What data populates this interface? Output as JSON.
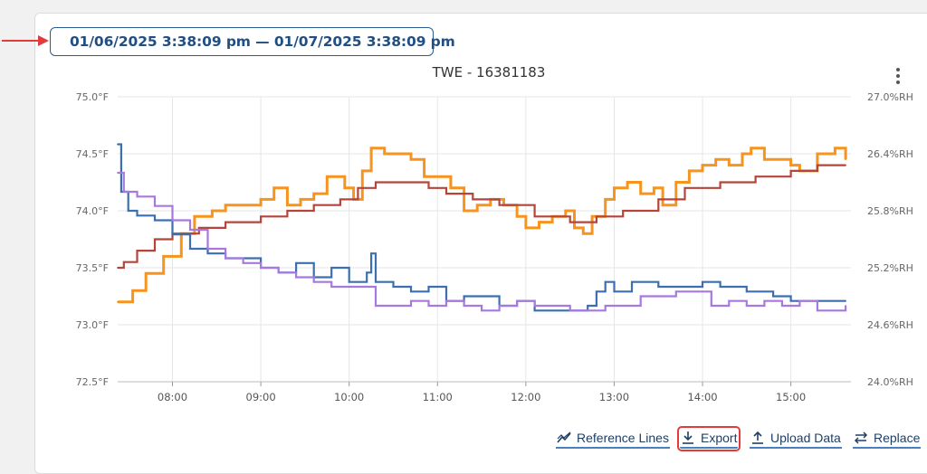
{
  "date_range": {
    "label": "01/06/2025 3:38:09 pm — 01/07/2025 3:38:09 pm"
  },
  "toolbar": {
    "reference_lines": "Reference Lines",
    "export": "Export",
    "upload_data": "Upload Data",
    "replace": "Replace"
  },
  "colors": {
    "accent": "#1f4f85",
    "highlight": "#e23b3b"
  },
  "icons": [
    "calendar-icon",
    "kebab-menu-icon",
    "reference-lines-icon",
    "download-icon",
    "upload-icon",
    "swap-icon"
  ],
  "chart_data": {
    "type": "line",
    "title": "TWE - 16381183",
    "x_ticks": [
      "08:00",
      "09:00",
      "10:00",
      "11:00",
      "12:00",
      "13:00",
      "14:00",
      "15:00"
    ],
    "xlim": [
      7.38,
      15.68
    ],
    "y_left": {
      "ticks": [
        "75.0°F",
        "74.5°F",
        "74.0°F",
        "73.5°F",
        "73.0°F",
        "72.5°F"
      ],
      "lim": [
        72.5,
        75.0
      ],
      "unit": "°F"
    },
    "y_right": {
      "ticks": [
        "27.0%RH",
        "26.4%RH",
        "25.8%RH",
        "25.2%RH",
        "24.6%RH",
        "24.0%RH"
      ],
      "lim": [
        24.0,
        27.0
      ],
      "unit": "%RH"
    },
    "grid": true,
    "series": [
      {
        "color": "#f7941d",
        "axis": "left",
        "x": [
          7.38,
          7.55,
          7.7,
          7.9,
          8.1,
          8.25,
          8.45,
          8.6,
          8.8,
          9.0,
          9.05,
          9.15,
          9.3,
          9.45,
          9.6,
          9.75,
          9.95,
          10.05,
          10.15,
          10.25,
          10.4,
          10.55,
          10.7,
          10.85,
          11.0,
          11.15,
          11.3,
          11.45,
          11.6,
          11.75,
          11.9,
          12.0,
          12.15,
          12.3,
          12.45,
          12.55,
          12.65,
          12.75,
          12.9,
          13.0,
          13.15,
          13.3,
          13.45,
          13.55,
          13.7,
          13.85,
          14.0,
          14.15,
          14.3,
          14.45,
          14.55,
          14.7,
          14.85,
          15.0,
          15.1,
          15.3,
          15.5,
          15.62
        ],
        "y": [
          73.2,
          73.3,
          73.45,
          73.6,
          73.8,
          73.95,
          74.0,
          74.05,
          74.05,
          74.1,
          74.1,
          74.2,
          74.05,
          74.1,
          74.15,
          74.3,
          74.2,
          74.1,
          74.35,
          74.55,
          74.5,
          74.5,
          74.45,
          74.3,
          74.3,
          74.2,
          74.0,
          74.05,
          74.1,
          74.05,
          73.95,
          73.85,
          73.9,
          73.95,
          74.0,
          73.85,
          73.8,
          73.95,
          74.1,
          74.2,
          74.25,
          74.15,
          74.2,
          74.05,
          74.25,
          74.35,
          74.4,
          74.45,
          74.4,
          74.5,
          74.55,
          74.45,
          74.45,
          74.4,
          74.35,
          74.5,
          74.55,
          74.45
        ]
      },
      {
        "color": "#b5443a",
        "axis": "left",
        "x": [
          7.38,
          7.45,
          7.6,
          7.8,
          8.0,
          8.3,
          8.6,
          9.0,
          9.3,
          9.6,
          9.9,
          10.1,
          10.3,
          10.7,
          10.9,
          11.1,
          11.4,
          11.7,
          12.1,
          12.5,
          12.8,
          13.1,
          13.5,
          13.8,
          14.2,
          14.6,
          15.0,
          15.3,
          15.62
        ],
        "y": [
          73.5,
          73.55,
          73.65,
          73.75,
          73.8,
          73.85,
          73.9,
          73.95,
          74.0,
          74.05,
          74.1,
          74.2,
          74.25,
          74.25,
          74.2,
          74.15,
          74.1,
          74.05,
          73.95,
          73.9,
          73.95,
          74.0,
          74.1,
          74.2,
          74.25,
          74.3,
          74.35,
          74.4,
          74.4
        ]
      },
      {
        "color": "#3b6fb0",
        "axis": "right",
        "x": [
          7.38,
          7.42,
          7.5,
          7.6,
          7.8,
          8.0,
          8.2,
          8.4,
          8.6,
          8.8,
          9.0,
          9.2,
          9.4,
          9.6,
          9.8,
          10.0,
          10.2,
          10.25,
          10.3,
          10.5,
          10.7,
          10.9,
          11.1,
          11.3,
          11.5,
          11.7,
          11.9,
          12.1,
          12.3,
          12.5,
          12.7,
          12.8,
          12.9,
          13.0,
          13.2,
          13.5,
          13.8,
          14.0,
          14.2,
          14.5,
          14.8,
          15.0,
          15.3,
          15.62
        ],
        "y": [
          26.5,
          26.0,
          25.8,
          25.75,
          25.7,
          25.55,
          25.4,
          25.35,
          25.3,
          25.3,
          25.2,
          25.15,
          25.25,
          25.1,
          25.2,
          25.05,
          25.15,
          25.35,
          25.05,
          25.0,
          24.95,
          25.0,
          24.85,
          24.9,
          24.9,
          24.8,
          24.85,
          24.75,
          24.75,
          24.75,
          24.8,
          24.95,
          25.05,
          24.95,
          25.05,
          25.0,
          25.0,
          25.05,
          25.0,
          24.95,
          24.9,
          24.85,
          24.85,
          24.85
        ]
      },
      {
        "color": "#a678e0",
        "axis": "right",
        "x": [
          7.38,
          7.45,
          7.6,
          7.8,
          8.0,
          8.2,
          8.4,
          8.6,
          8.8,
          9.0,
          9.2,
          9.4,
          9.6,
          9.8,
          10.0,
          10.2,
          10.3,
          10.5,
          10.7,
          10.9,
          11.1,
          11.3,
          11.5,
          11.7,
          11.9,
          12.1,
          12.3,
          12.5,
          12.7,
          12.9,
          13.1,
          13.3,
          13.5,
          13.7,
          13.9,
          14.1,
          14.3,
          14.5,
          14.7,
          14.9,
          15.1,
          15.3,
          15.62
        ],
        "y": [
          26.2,
          26.0,
          25.95,
          25.85,
          25.7,
          25.6,
          25.4,
          25.3,
          25.25,
          25.2,
          25.15,
          25.1,
          25.05,
          25.0,
          25.0,
          25.0,
          24.8,
          24.8,
          24.85,
          24.8,
          24.85,
          24.8,
          24.75,
          24.8,
          24.85,
          24.8,
          24.8,
          24.75,
          24.75,
          24.8,
          24.8,
          24.9,
          24.9,
          24.95,
          24.95,
          24.8,
          24.85,
          24.8,
          24.85,
          24.8,
          24.85,
          24.75,
          24.8
        ]
      }
    ]
  }
}
